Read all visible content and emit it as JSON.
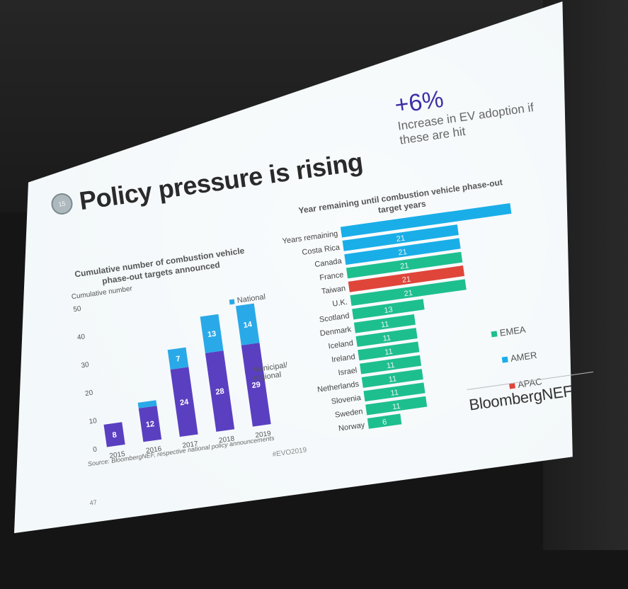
{
  "slide": {
    "title": "Policy pressure is rising",
    "badge_text": "15",
    "big_stat": {
      "value": "+6%",
      "caption": "Increase in EV adoption if these are hit"
    },
    "source": "Source: BloombergNEF, respective national policy announcements",
    "hashtag": "#EVO2019",
    "page_number": "47",
    "brand": "BloombergNEF"
  },
  "colors": {
    "national": "#2aa9e8",
    "municipal": "#5a3fc1",
    "emea": "#1ebf8f",
    "amer": "#1aaee8",
    "apac": "#e0453a"
  },
  "chart_data": [
    {
      "type": "bar",
      "stacked": true,
      "title": "Cumulative number of combustion vehicle phase-out targets announced",
      "ylabel": "Cumulative number",
      "categories": [
        "2015",
        "2016",
        "2017",
        "2018",
        "2019"
      ],
      "series": [
        {
          "name": "Municipal/ regional",
          "values": [
            8,
            12,
            24,
            28,
            29
          ],
          "labels": [
            "8",
            "12",
            "24",
            "28",
            "29"
          ]
        },
        {
          "name": "National",
          "values": [
            0,
            2,
            7,
            13,
            14
          ],
          "labels": [
            "",
            "",
            "7",
            "13",
            "14"
          ]
        }
      ],
      "ylim": [
        0,
        50
      ],
      "yticks": [
        "0",
        "10",
        "20",
        "30",
        "40",
        "50"
      ],
      "grid": false,
      "legend": "right"
    },
    {
      "type": "bar",
      "orientation": "horizontal",
      "title": "Year remaining until combustion vehicle phase-out target years",
      "categories": [
        "Years remaining",
        "Costa Rica",
        "Canada",
        "France",
        "Taiwan",
        "U.K.",
        "Scotland",
        "Denmark",
        "Iceland",
        "Ireland",
        "Israel",
        "Netherlands",
        "Slovenia",
        "Sweden",
        "Norway"
      ],
      "values": [
        31,
        21,
        21,
        21,
        21,
        21,
        13,
        11,
        11,
        11,
        11,
        11,
        11,
        11,
        6
      ],
      "labels": [
        "",
        "21",
        "21",
        "21",
        "21",
        "21",
        "13",
        "11",
        "11",
        "11",
        "11",
        "11",
        "11",
        "11",
        "6"
      ],
      "regions": [
        "AMER",
        "AMER",
        "AMER",
        "EMEA",
        "APAC",
        "EMEA",
        "EMEA",
        "EMEA",
        "EMEA",
        "EMEA",
        "EMEA",
        "EMEA",
        "EMEA",
        "EMEA",
        "EMEA"
      ],
      "legend_entries": [
        "EMEA",
        "AMER",
        "APAC"
      ],
      "legend": "right"
    }
  ]
}
